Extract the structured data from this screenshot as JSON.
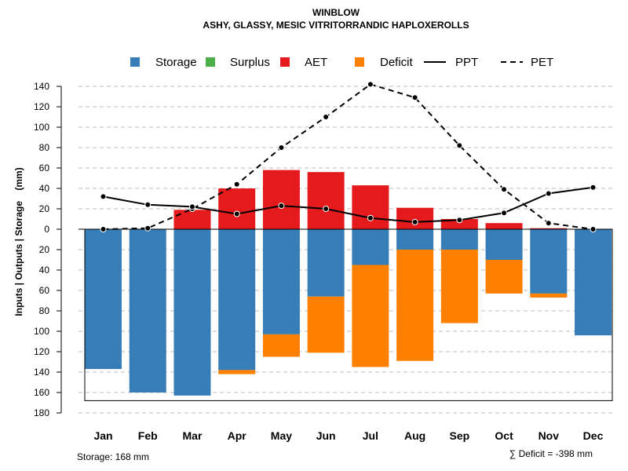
{
  "chart_data": {
    "type": "bar",
    "title": "WINBLOW",
    "subtitle": "ASHY, GLASSY, MESIC VITRITORRANDIC HAPLOXEROLLS",
    "ylabel": "Inputs | Outputs | Storage    (mm)",
    "xlabel": "",
    "categories": [
      "Jan",
      "Feb",
      "Mar",
      "Apr",
      "May",
      "Jun",
      "Jul",
      "Aug",
      "Sep",
      "Oct",
      "Nov",
      "Dec"
    ],
    "yticks": [
      140,
      120,
      100,
      80,
      60,
      40,
      20,
      0,
      -20,
      -40,
      -60,
      -80,
      -100,
      -120,
      -140,
      -160,
      -180
    ],
    "ylim": [
      -180,
      145
    ],
    "grid": true,
    "legend_position": "top",
    "legend": [
      {
        "label": "Storage",
        "kind": "box",
        "color": "#377EB8"
      },
      {
        "label": "Surplus",
        "kind": "box",
        "color": "#4DAF4A"
      },
      {
        "label": "AET",
        "kind": "box",
        "color": "#E41A1C"
      },
      {
        "label": "Deficit",
        "kind": "box",
        "color": "#FF7F00"
      },
      {
        "label": "PPT",
        "kind": "solid-line",
        "color": "#000000"
      },
      {
        "label": "PET",
        "kind": "dashed-line",
        "color": "#000000"
      }
    ],
    "series": [
      {
        "name": "AET",
        "color": "#E41A1C",
        "values": [
          0,
          0,
          19,
          40,
          58,
          56,
          43,
          21,
          10,
          6,
          1,
          0
        ]
      },
      {
        "name": "Storage",
        "color": "#377EB8",
        "values": [
          -137,
          -160,
          -163,
          -138,
          -103,
          -66,
          -35,
          -20,
          -20,
          -30,
          -63,
          -104
        ]
      },
      {
        "name": "Deficit",
        "color": "#FF7F00",
        "values": [
          0,
          0,
          0,
          -4,
          -22,
          -55,
          -100,
          -109,
          -72,
          -33,
          -4,
          0
        ]
      },
      {
        "name": "Surplus",
        "color": "#4DAF4A",
        "values": [
          0,
          0,
          0,
          0,
          0,
          0,
          0,
          0,
          0,
          0,
          0,
          0
        ]
      },
      {
        "name": "PPT",
        "color": "#000000",
        "values": [
          32,
          24,
          22,
          15,
          23,
          20,
          11,
          7,
          9,
          16,
          35,
          41
        ]
      },
      {
        "name": "PET",
        "color": "#000000",
        "values": [
          0,
          1,
          20,
          44,
          80,
          110,
          142,
          129,
          82,
          39,
          6,
          0
        ]
      }
    ],
    "storage_capacity": -168,
    "footer_left": "Storage: 168 mm",
    "footer_right": "∑ Deficit = -398 mm"
  }
}
